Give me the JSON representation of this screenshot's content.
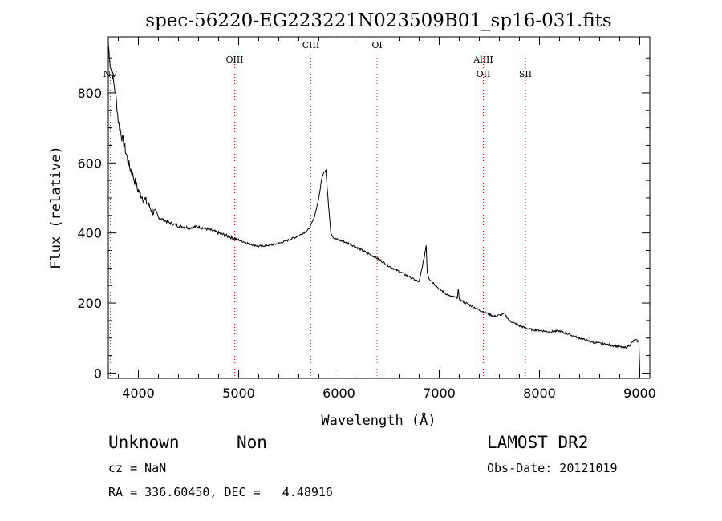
{
  "chart_data": {
    "type": "line",
    "title": "spec-56220-EG223221N023509B01_sp16-031.fits",
    "xlabel": "Wavelength (Å)",
    "ylabel": "Flux (relative)",
    "xlim": [
      3700,
      9100
    ],
    "ylim": [
      -15,
      960
    ],
    "xticks": [
      4000,
      5000,
      6000,
      7000,
      8000,
      9000
    ],
    "yticks": [
      0,
      200,
      400,
      600,
      800
    ],
    "grid": false,
    "series": [
      {
        "x": [
          3700,
          3720,
          3740,
          3760,
          3780,
          3800,
          3830,
          3860,
          3900,
          3950,
          4000,
          4050,
          4100,
          4150,
          4200,
          4300,
          4400,
          4500,
          4600,
          4700,
          4800,
          4900,
          5000,
          5100,
          5200,
          5300,
          5400,
          5500,
          5600,
          5700,
          5750,
          5800,
          5830,
          5850,
          5870,
          5890,
          5920,
          5950,
          6000,
          6100,
          6200,
          6300,
          6400,
          6500,
          6600,
          6700,
          6800,
          6850,
          6870,
          6880,
          6900,
          6950,
          7000,
          7100,
          7180,
          7190,
          7200,
          7300,
          7400,
          7500,
          7550,
          7600,
          7650,
          7700,
          7800,
          7900,
          8000,
          8100,
          8200,
          8300,
          8400,
          8500,
          8600,
          8700,
          8800,
          8850,
          8900,
          8950,
          8990,
          9000
        ],
        "y": [
          940,
          880,
          850,
          820,
          780,
          720,
          680,
          650,
          600,
          560,
          520,
          500,
          480,
          460,
          445,
          430,
          420,
          415,
          418,
          410,
          400,
          390,
          380,
          370,
          362,
          365,
          370,
          380,
          392,
          410,
          440,
          500,
          560,
          575,
          580,
          500,
          400,
          385,
          380,
          370,
          355,
          340,
          325,
          305,
          290,
          275,
          260,
          330,
          365,
          290,
          270,
          255,
          240,
          220,
          215,
          240,
          210,
          195,
          180,
          168,
          162,
          165,
          170,
          150,
          135,
          125,
          122,
          118,
          120,
          110,
          100,
          90,
          85,
          80,
          75,
          72,
          80,
          95,
          90,
          10
        ]
      }
    ],
    "lines": [
      {
        "label": "NV",
        "x": 3720,
        "row": 2
      },
      {
        "label": "OIII",
        "x": 4960,
        "row": 1
      },
      {
        "label": "CIII",
        "x": 5720,
        "row": 0
      },
      {
        "label": "OI",
        "x": 6380,
        "row": 0
      },
      {
        "label": "AlIII",
        "x": 7440,
        "row": 1
      },
      {
        "label": "OII",
        "x": 7440,
        "row": 2
      },
      {
        "label": "SII",
        "x": 7860,
        "row": 2
      }
    ],
    "line_color": "#ff0000"
  },
  "footer": {
    "object_class": "Unknown",
    "subclass": "Non",
    "survey": "LAMOST DR2",
    "redshift": "cz = NaN",
    "obs_date": "Obs-Date: 20121019",
    "coords": "RA = 336.60450, DEC =   4.48916"
  }
}
